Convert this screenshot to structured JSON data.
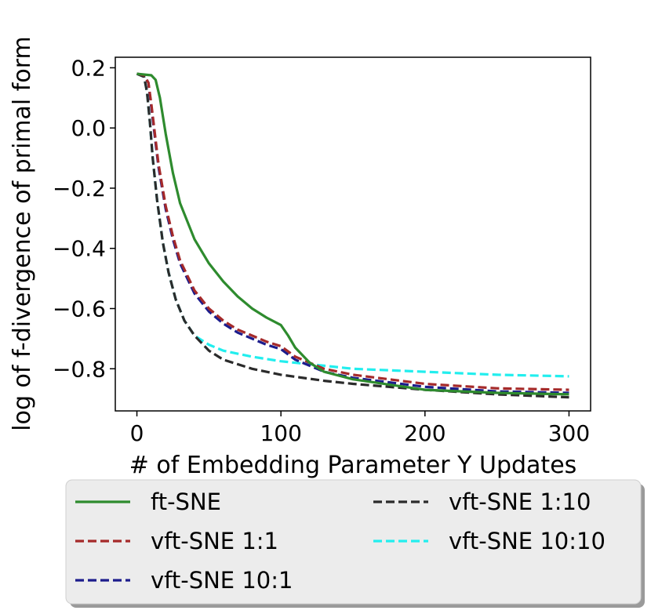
{
  "chart_data": {
    "type": "line",
    "xlabel": "# of Embedding Parameter Y Updates",
    "ylabel": "log of f-divergence of primal form",
    "xlim": [
      -15,
      315
    ],
    "ylim": [
      -0.94,
      0.235
    ],
    "xticks": [
      0,
      100,
      200,
      300
    ],
    "xtick_labels": [
      "0",
      "100",
      "200",
      "300"
    ],
    "yticks": [
      0.2,
      0.0,
      -0.2,
      -0.4,
      -0.6,
      -0.8
    ],
    "ytick_labels": [
      "0.2",
      "0.0",
      "−0.2",
      "−0.4",
      "−0.6",
      "−0.8"
    ],
    "legend_position": "below",
    "series": [
      {
        "name": "ft-SNE",
        "color": "#2e8b2e",
        "dash": "solid",
        "x": [
          0,
          10,
          13,
          16,
          20,
          25,
          30,
          40,
          50,
          60,
          70,
          80,
          90,
          100,
          105,
          110,
          120,
          130,
          150,
          200,
          250,
          300
        ],
        "y": [
          0.18,
          0.175,
          0.16,
          0.1,
          -0.02,
          -0.15,
          -0.25,
          -0.37,
          -0.45,
          -0.51,
          -0.56,
          -0.6,
          -0.63,
          -0.655,
          -0.69,
          -0.73,
          -0.78,
          -0.81,
          -0.835,
          -0.87,
          -0.88,
          -0.885
        ]
      },
      {
        "name": "vft-SNE 1:1",
        "color": "#a52a2a",
        "dash": "dashed",
        "x": [
          0,
          5,
          8,
          10,
          12,
          15,
          20,
          25,
          30,
          40,
          50,
          60,
          70,
          80,
          90,
          100,
          110,
          120,
          130,
          150,
          200,
          250,
          300
        ],
        "y": [
          0.18,
          0.175,
          0.15,
          0.08,
          0.0,
          -0.12,
          -0.26,
          -0.36,
          -0.44,
          -0.54,
          -0.6,
          -0.64,
          -0.67,
          -0.69,
          -0.71,
          -0.725,
          -0.76,
          -0.78,
          -0.8,
          -0.82,
          -0.85,
          -0.865,
          -0.87
        ]
      },
      {
        "name": "vft-SNE 10:1",
        "color": "#1c1c8c",
        "dash": "dashed",
        "x": [
          0,
          5,
          8,
          10,
          12,
          15,
          20,
          25,
          30,
          40,
          50,
          60,
          70,
          80,
          90,
          100,
          110,
          120,
          130,
          150,
          200,
          250,
          300
        ],
        "y": [
          0.18,
          0.175,
          0.15,
          0.07,
          -0.01,
          -0.13,
          -0.27,
          -0.37,
          -0.45,
          -0.55,
          -0.61,
          -0.65,
          -0.68,
          -0.7,
          -0.72,
          -0.735,
          -0.77,
          -0.79,
          -0.81,
          -0.83,
          -0.86,
          -0.875,
          -0.88
        ]
      },
      {
        "name": "vft-SNE 1:10",
        "color": "#2b2b2b",
        "dash": "dashed",
        "x": [
          0,
          5,
          7,
          9,
          11,
          14,
          18,
          22,
          27,
          33,
          40,
          50,
          60,
          80,
          100,
          130,
          150,
          200,
          250,
          300
        ],
        "y": [
          0.18,
          0.17,
          0.12,
          0.02,
          -0.1,
          -0.24,
          -0.38,
          -0.48,
          -0.57,
          -0.64,
          -0.69,
          -0.74,
          -0.77,
          -0.8,
          -0.82,
          -0.84,
          -0.85,
          -0.87,
          -0.885,
          -0.895
        ]
      },
      {
        "name": "vft-SNE 10:10",
        "color": "#22eeee",
        "dash": "dashed",
        "x": [
          0,
          5,
          7,
          9,
          11,
          14,
          18,
          22,
          27,
          33,
          40,
          50,
          60,
          80,
          100,
          130,
          150,
          200,
          250,
          300
        ],
        "y": [
          0.18,
          0.17,
          0.12,
          0.02,
          -0.1,
          -0.24,
          -0.38,
          -0.48,
          -0.57,
          -0.64,
          -0.69,
          -0.72,
          -0.74,
          -0.76,
          -0.775,
          -0.79,
          -0.8,
          -0.81,
          -0.82,
          -0.825
        ]
      }
    ]
  }
}
